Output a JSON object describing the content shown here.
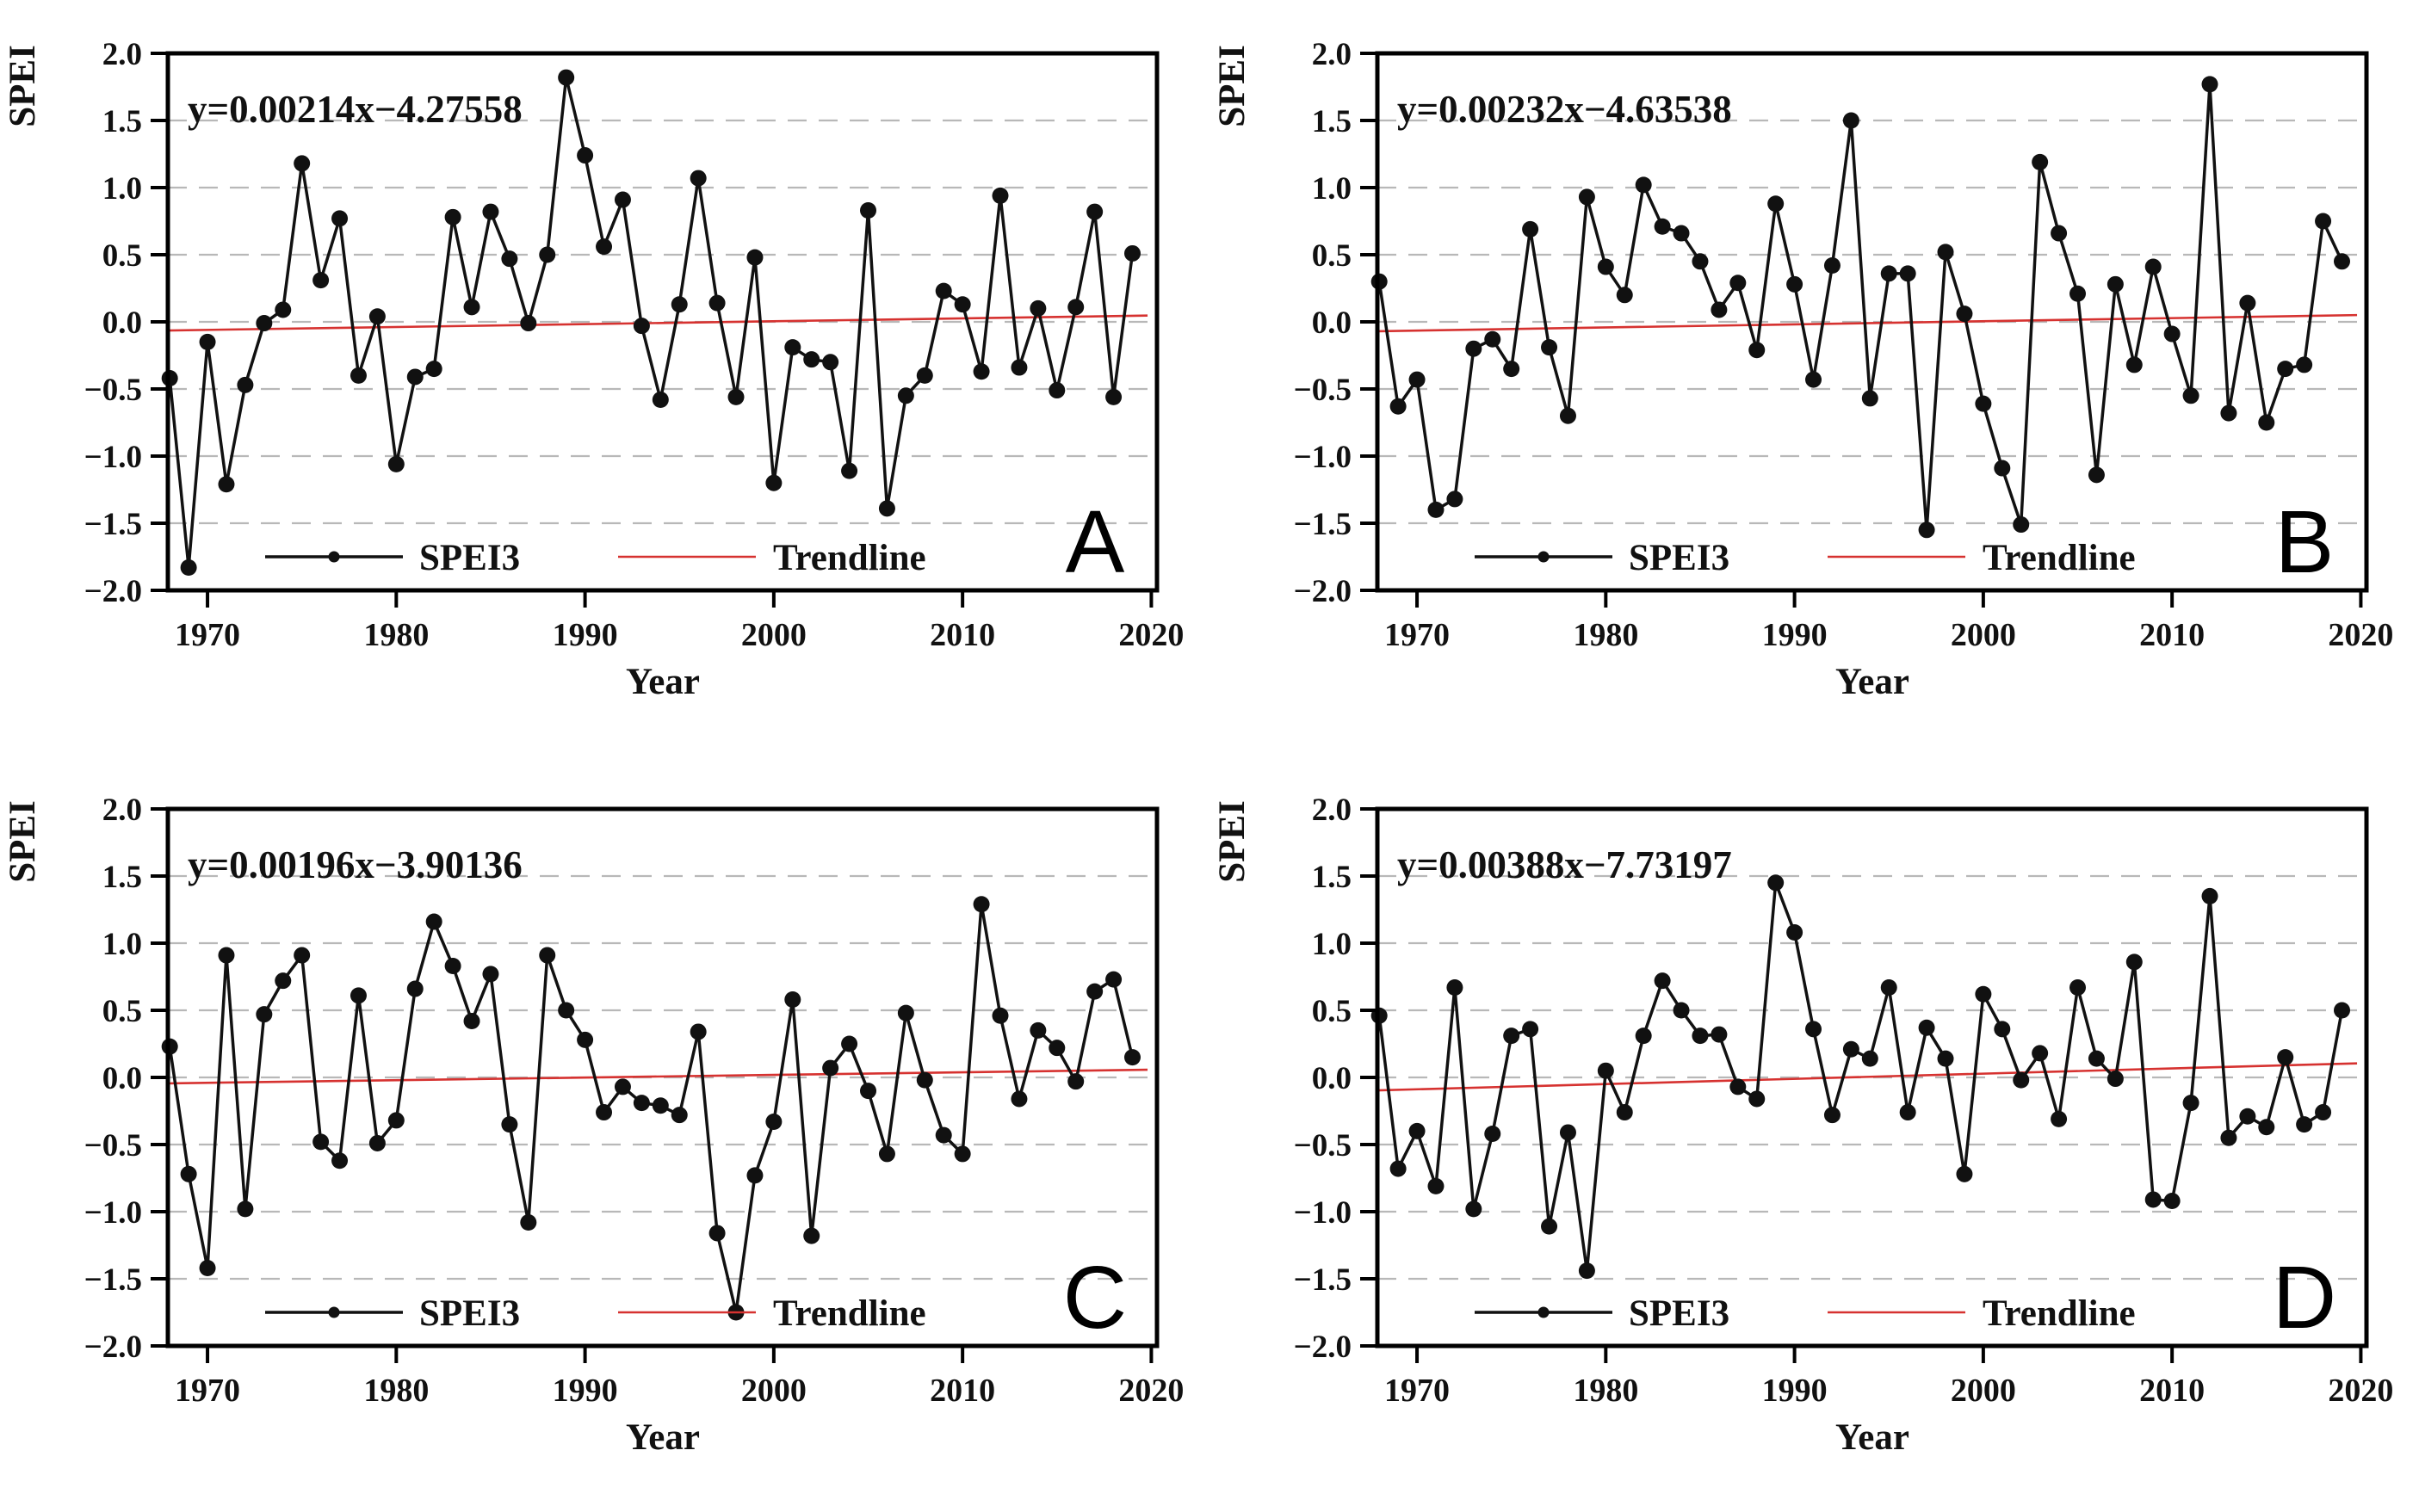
{
  "figure": {
    "xlabel": "Year",
    "ylabel": "SPEI",
    "legend": {
      "series_label": "SPEI3",
      "trend_label": "Trendline"
    },
    "colors": {
      "series": "#111111",
      "trend": "#d63230",
      "grid": "#b8b8b8",
      "axis": "#000000"
    },
    "ylim": [
      -2.0,
      2.0
    ],
    "xlim": [
      1967.9,
      2020.3
    ],
    "yticks": [
      2.0,
      1.5,
      1.0,
      0.5,
      0.0,
      -0.5,
      -1.0,
      -1.5,
      -2.0
    ],
    "xticks": [
      1970,
      1980,
      1990,
      2000,
      2010,
      2020
    ],
    "grid": "dashed horizontal at every 0.5",
    "legend_position": "bottom-center-left inside plot"
  },
  "chart_data": [
    {
      "type": "line",
      "panel": "A",
      "equation": "y=0.00214x−4.27558",
      "trend": {
        "slope": 0.00214,
        "intercept": -4.27558
      },
      "xlabel": "Year",
      "ylabel": "SPEI",
      "ylim": [
        -2.0,
        2.0
      ],
      "x": [
        1968,
        1969,
        1970,
        1971,
        1972,
        1973,
        1974,
        1975,
        1976,
        1977,
        1978,
        1979,
        1980,
        1981,
        1982,
        1983,
        1984,
        1985,
        1986,
        1987,
        1988,
        1989,
        1990,
        1991,
        1992,
        1993,
        1994,
        1995,
        1996,
        1997,
        1998,
        1999,
        2000,
        2001,
        2002,
        2003,
        2004,
        2005,
        2006,
        2007,
        2008,
        2009,
        2010,
        2011,
        2012,
        2013,
        2014,
        2015,
        2016,
        2017,
        2018,
        2019
      ],
      "values": [
        -0.42,
        -1.83,
        -0.15,
        -1.21,
        -0.47,
        -0.01,
        0.09,
        1.18,
        0.31,
        0.77,
        -0.4,
        0.04,
        -1.06,
        -0.41,
        -0.35,
        0.78,
        0.11,
        0.82,
        0.47,
        -0.01,
        0.5,
        1.82,
        1.24,
        0.56,
        0.91,
        -0.03,
        -0.58,
        0.13,
        1.07,
        0.14,
        -0.56,
        0.48,
        -1.2,
        -0.19,
        -0.28,
        -0.3,
        -1.11,
        0.83,
        -1.39,
        -0.55,
        -0.4,
        0.23,
        0.13,
        -0.37,
        0.94,
        -0.34,
        0.1,
        -0.51,
        0.11,
        0.82,
        -0.56,
        0.51
      ]
    },
    {
      "type": "line",
      "panel": "B",
      "equation": "y=0.00232x−4.63538",
      "trend": {
        "slope": 0.00232,
        "intercept": -4.63538
      },
      "xlabel": "Year",
      "ylabel": "SPEI",
      "ylim": [
        -2.0,
        2.0
      ],
      "x": [
        1968,
        1969,
        1970,
        1971,
        1972,
        1973,
        1974,
        1975,
        1976,
        1977,
        1978,
        1979,
        1980,
        1981,
        1982,
        1983,
        1984,
        1985,
        1986,
        1987,
        1988,
        1989,
        1990,
        1991,
        1992,
        1993,
        1994,
        1995,
        1996,
        1997,
        1998,
        1999,
        2000,
        2001,
        2002,
        2003,
        2004,
        2005,
        2006,
        2007,
        2008,
        2009,
        2010,
        2011,
        2012,
        2013,
        2014,
        2015,
        2016,
        2017,
        2018,
        2019
      ],
      "values": [
        0.3,
        -0.63,
        -0.43,
        -1.4,
        -1.32,
        -0.2,
        -0.13,
        -0.35,
        0.69,
        -0.19,
        -0.7,
        0.93,
        0.41,
        0.2,
        1.02,
        0.71,
        0.66,
        0.45,
        0.09,
        0.29,
        -0.21,
        0.88,
        0.28,
        -0.43,
        0.42,
        1.5,
        -0.57,
        0.36,
        0.36,
        -1.55,
        0.52,
        0.06,
        -0.61,
        -1.09,
        -1.51,
        1.19,
        0.66,
        0.21,
        -1.14,
        0.28,
        -0.32,
        0.41,
        -0.09,
        -0.55,
        1.77,
        -0.68,
        0.14,
        -0.75,
        -0.35,
        -0.32,
        0.75,
        0.45
      ]
    },
    {
      "type": "line",
      "panel": "C",
      "equation": "y=0.00196x−3.90136",
      "trend": {
        "slope": 0.00196,
        "intercept": -3.90136
      },
      "xlabel": "Year",
      "ylabel": "SPEI",
      "ylim": [
        -2.0,
        2.0
      ],
      "x": [
        1968,
        1969,
        1970,
        1971,
        1972,
        1973,
        1974,
        1975,
        1976,
        1977,
        1978,
        1979,
        1980,
        1981,
        1982,
        1983,
        1984,
        1985,
        1986,
        1987,
        1988,
        1989,
        1990,
        1991,
        1992,
        1993,
        1994,
        1995,
        1996,
        1997,
        1998,
        1999,
        2000,
        2001,
        2002,
        2003,
        2004,
        2005,
        2006,
        2007,
        2008,
        2009,
        2010,
        2011,
        2012,
        2013,
        2014,
        2015,
        2016,
        2017,
        2018,
        2019
      ],
      "values": [
        0.23,
        -0.72,
        -1.42,
        0.91,
        -0.98,
        0.47,
        0.72,
        0.91,
        -0.48,
        -0.62,
        0.61,
        -0.49,
        -0.32,
        0.66,
        1.16,
        0.83,
        0.42,
        0.77,
        -0.35,
        -1.08,
        0.91,
        0.5,
        0.28,
        -0.26,
        -0.07,
        -0.19,
        -0.21,
        -0.28,
        0.34,
        -1.16,
        -1.75,
        -0.73,
        -0.33,
        0.58,
        -1.18,
        0.07,
        0.25,
        -0.1,
        -0.57,
        0.48,
        -0.02,
        -0.43,
        -0.57,
        1.29,
        0.46,
        -0.16,
        0.35,
        0.22,
        -0.03,
        0.64,
        0.73,
        0.15
      ]
    },
    {
      "type": "line",
      "panel": "D",
      "equation": "y=0.00388x−7.73197",
      "trend": {
        "slope": 0.00388,
        "intercept": -7.73197
      },
      "xlabel": "Year",
      "ylabel": "SPEI",
      "ylim": [
        -2.0,
        2.0
      ],
      "x": [
        1968,
        1969,
        1970,
        1971,
        1972,
        1973,
        1974,
        1975,
        1976,
        1977,
        1978,
        1979,
        1980,
        1981,
        1982,
        1983,
        1984,
        1985,
        1986,
        1987,
        1988,
        1989,
        1990,
        1991,
        1992,
        1993,
        1994,
        1995,
        1996,
        1997,
        1998,
        1999,
        2000,
        2001,
        2002,
        2003,
        2004,
        2005,
        2006,
        2007,
        2008,
        2009,
        2010,
        2011,
        2012,
        2013,
        2014,
        2015,
        2016,
        2017,
        2018,
        2019
      ],
      "values": [
        0.46,
        -0.68,
        -0.4,
        -0.81,
        0.67,
        -0.98,
        -0.42,
        0.31,
        0.36,
        -1.11,
        -0.41,
        -1.44,
        0.05,
        -0.26,
        0.31,
        0.72,
        0.5,
        0.31,
        0.32,
        -0.07,
        -0.16,
        1.45,
        1.08,
        0.36,
        -0.28,
        0.21,
        0.14,
        0.67,
        -0.26,
        0.37,
        0.14,
        -0.72,
        0.62,
        0.36,
        -0.02,
        0.18,
        -0.31,
        0.67,
        0.14,
        -0.01,
        0.86,
        -0.91,
        -0.92,
        -0.19,
        1.35,
        -0.45,
        -0.29,
        -0.37,
        0.15,
        -0.35,
        -0.26,
        0.5
      ]
    }
  ]
}
